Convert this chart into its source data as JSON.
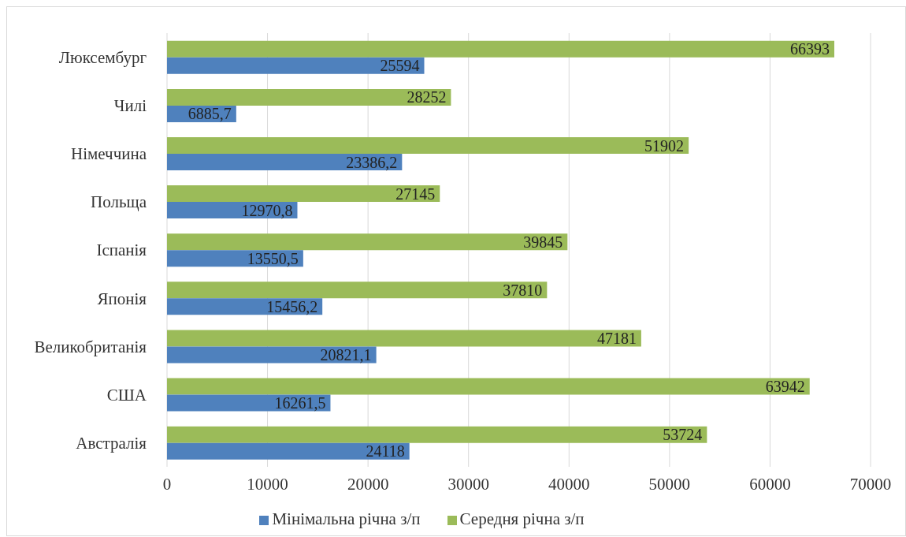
{
  "chart_data": {
    "type": "bar",
    "orientation": "horizontal",
    "categories": [
      "Люксембург",
      "Чилі",
      "Німеччина",
      "Польща",
      "Іспанія",
      "Японія",
      "Великобританія",
      "США",
      "Австралія"
    ],
    "series": [
      {
        "name": "Середня річна з/п",
        "color": "#9bbb59",
        "values": [
          66393,
          28252,
          51902,
          27145,
          39845,
          37810,
          47181,
          63942,
          53724
        ],
        "value_labels": [
          "66393",
          "28252",
          "51902",
          "27145",
          "39845",
          "37810",
          "47181",
          "63942",
          "53724"
        ]
      },
      {
        "name": "Мінімальна річна з/п",
        "color": "#4f81bd",
        "values": [
          25594,
          6885.7,
          23386.2,
          12970.8,
          13550.5,
          15456.2,
          20821.1,
          16261.5,
          24118
        ],
        "value_labels": [
          "25594",
          "6885,7",
          "23386,2",
          "12970,8",
          "13550,5",
          "15456,2",
          "20821,1",
          "16261,5",
          "24118"
        ]
      }
    ],
    "xlim": [
      0,
      70000
    ],
    "xticks": [
      0,
      10000,
      20000,
      30000,
      40000,
      50000,
      60000,
      70000
    ],
    "grid": "x",
    "legend": "bottom"
  }
}
